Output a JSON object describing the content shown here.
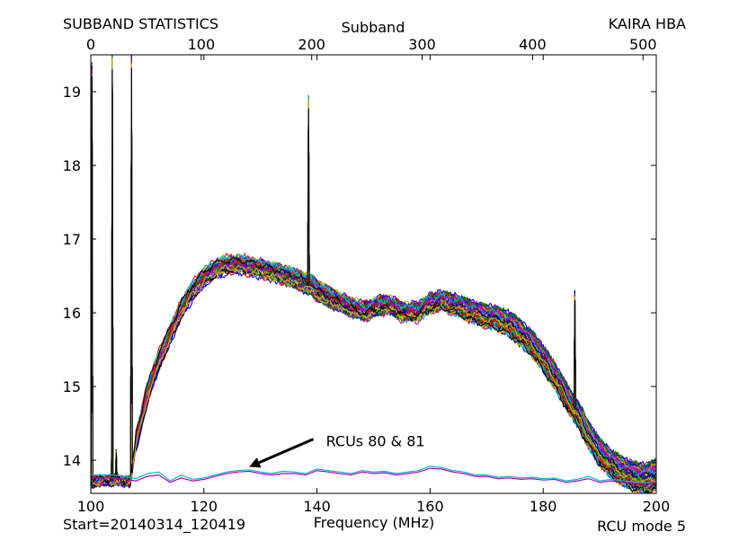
{
  "chart_data": {
    "type": "line",
    "title_left": "SUBBAND STATISTICS",
    "title_right": "KAIRA HBA",
    "top_axis_label": "Subband",
    "xlabel": "Frequency (MHz)",
    "footer_left": "Start=20140314_120419",
    "footer_right": "RCU mode 5",
    "xlim": [
      100,
      200
    ],
    "ylim": [
      13.55,
      19.5
    ],
    "x_ticks": [
      100,
      120,
      140,
      160,
      180,
      200
    ],
    "y_ticks": [
      14,
      15,
      16,
      17,
      18,
      19
    ],
    "top_ticks": [
      0,
      100,
      200,
      300,
      400,
      500
    ],
    "subband_mhz_per_unit": 0.1953125,
    "annotation": {
      "text": "RCUs 80 & 81",
      "text_at": [
        140,
        14.25
      ],
      "arrow_to": [
        128,
        13.91
      ]
    },
    "palette": [
      "#0000ff",
      "#008000",
      "#ff0000",
      "#00bfbf",
      "#bf00bf",
      "#bfbf00",
      "#000000"
    ],
    "bundle": {
      "count": 70,
      "profile_x": [
        100,
        102,
        103.5,
        104,
        104.5,
        105,
        106.5,
        107,
        108,
        110,
        112,
        114,
        116,
        118,
        120,
        122,
        124,
        126,
        128,
        130,
        132,
        134,
        136,
        137,
        138,
        139,
        140,
        142,
        144,
        146,
        148,
        150,
        152,
        154,
        156,
        158,
        160,
        162,
        164,
        166,
        168,
        170,
        172,
        174,
        176,
        178,
        180,
        182,
        184,
        185,
        186,
        187,
        188,
        190,
        192,
        194,
        196,
        198,
        200
      ],
      "profile_y": [
        13.7,
        13.72,
        13.72,
        13.72,
        13.75,
        13.72,
        13.7,
        13.72,
        14.25,
        14.9,
        15.35,
        15.7,
        16.05,
        16.3,
        16.48,
        16.6,
        16.65,
        16.66,
        16.63,
        16.6,
        16.56,
        16.52,
        16.47,
        16.44,
        16.4,
        16.38,
        16.3,
        16.22,
        16.15,
        16.08,
        16.02,
        16.06,
        16.12,
        16.06,
        16.0,
        16.02,
        16.12,
        16.16,
        16.12,
        16.06,
        16.0,
        15.95,
        15.92,
        15.85,
        15.72,
        15.58,
        15.38,
        15.15,
        14.88,
        14.75,
        14.65,
        14.5,
        14.35,
        14.1,
        13.95,
        13.85,
        13.78,
        13.75,
        13.8
      ],
      "spikes": [
        {
          "x": 100.2,
          "y": 19.4
        },
        {
          "x": 103.8,
          "y": 19.5
        },
        {
          "x": 104.5,
          "y": 14.15
        },
        {
          "x": 107.2,
          "y": 19.5
        },
        {
          "x": 138.5,
          "y": 18.95
        },
        {
          "x": 185.6,
          "y": 16.32
        }
      ]
    },
    "series": [
      {
        "name": "RCU 80",
        "color": "#00bfbf",
        "x": [
          100,
          104,
          106,
          108,
          110,
          112,
          114,
          116,
          118,
          120,
          122,
          124,
          126,
          128,
          130,
          132,
          134,
          136,
          138,
          140,
          142,
          144,
          146,
          148,
          150,
          152,
          154,
          156,
          158,
          160,
          162,
          164,
          166,
          168,
          170,
          172,
          174,
          176,
          178,
          180,
          182,
          184,
          186,
          188,
          190,
          192,
          194,
          196,
          198,
          200
        ],
        "y": [
          13.8,
          13.8,
          13.78,
          13.75,
          13.82,
          13.84,
          13.72,
          13.8,
          13.74,
          13.76,
          13.8,
          13.84,
          13.86,
          13.87,
          13.84,
          13.82,
          13.85,
          13.84,
          13.82,
          13.88,
          13.86,
          13.84,
          13.82,
          13.86,
          13.84,
          13.85,
          13.82,
          13.84,
          13.86,
          13.92,
          13.9,
          13.86,
          13.84,
          13.8,
          13.8,
          13.77,
          13.78,
          13.76,
          13.77,
          13.75,
          13.76,
          13.72,
          13.74,
          13.78,
          13.72,
          13.74,
          13.72,
          13.71,
          13.69,
          13.72
        ]
      },
      {
        "name": "RCU 81",
        "color": "#bf00bf",
        "x": [
          100,
          104,
          106,
          108,
          110,
          112,
          114,
          116,
          118,
          120,
          122,
          124,
          126,
          128,
          130,
          132,
          134,
          136,
          138,
          140,
          142,
          144,
          146,
          148,
          150,
          152,
          154,
          156,
          158,
          160,
          162,
          164,
          166,
          168,
          170,
          172,
          174,
          176,
          178,
          180,
          182,
          184,
          186,
          188,
          190,
          192,
          194,
          196,
          198,
          200
        ],
        "y": [
          13.76,
          13.76,
          13.74,
          13.72,
          13.78,
          13.8,
          13.7,
          13.76,
          13.72,
          13.74,
          13.78,
          13.82,
          13.84,
          13.85,
          13.82,
          13.8,
          13.82,
          13.82,
          13.8,
          13.86,
          13.84,
          13.82,
          13.8,
          13.84,
          13.82,
          13.83,
          13.8,
          13.82,
          13.84,
          13.89,
          13.88,
          13.84,
          13.82,
          13.78,
          13.78,
          13.75,
          13.76,
          13.74,
          13.75,
          13.73,
          13.74,
          13.7,
          13.72,
          13.75,
          13.7,
          13.72,
          13.7,
          13.69,
          13.68,
          13.7
        ]
      }
    ]
  }
}
